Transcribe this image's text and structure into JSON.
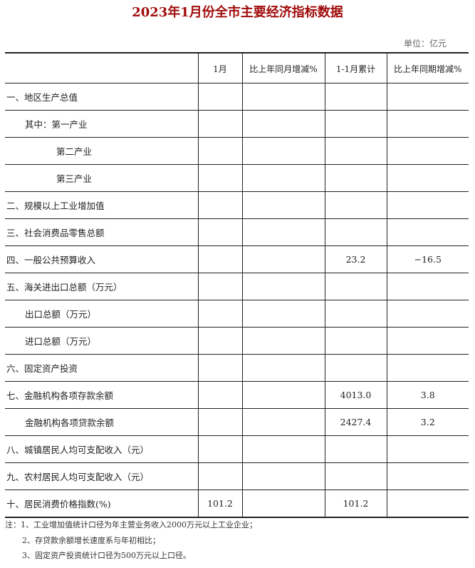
{
  "title": "2023年1月份全市主要经济指标数据",
  "unit": "单位：亿元",
  "columns": [
    "",
    "1月",
    "比上年同月增减%",
    "1-1月累计",
    "比上年同期增减%"
  ],
  "rows": [
    {
      "label": "一、地区生产总值",
      "indent": 0,
      "values": [
        "",
        "",
        "",
        ""
      ]
    },
    {
      "label": "其中：第一产业",
      "indent": 1,
      "values": [
        "",
        "",
        "",
        ""
      ]
    },
    {
      "label": "第二产业",
      "indent": 2,
      "values": [
        "",
        "",
        "",
        ""
      ]
    },
    {
      "label": "第三产业",
      "indent": 2,
      "values": [
        "",
        "",
        "",
        ""
      ]
    },
    {
      "label": "二、规模以上工业增加值",
      "indent": 0,
      "values": [
        "",
        "",
        "",
        ""
      ]
    },
    {
      "label": "三、社会消费品零售总额",
      "indent": 0,
      "values": [
        "",
        "",
        "",
        ""
      ]
    },
    {
      "label": "四、一般公共预算收入",
      "indent": 0,
      "values": [
        "",
        "",
        "23.2",
        "−16.5"
      ]
    },
    {
      "label": "五、海关进出口总额（万元）",
      "indent": 0,
      "values": [
        "",
        "",
        "",
        ""
      ]
    },
    {
      "label": "出口总额（万元）",
      "indent": 1,
      "values": [
        "",
        "",
        "",
        ""
      ]
    },
    {
      "label": "进口总额（万元）",
      "indent": 1,
      "values": [
        "",
        "",
        "",
        ""
      ]
    },
    {
      "label": "六、固定资产投资",
      "indent": 0,
      "values": [
        "",
        "",
        "",
        ""
      ]
    },
    {
      "label": "七、金融机构各项存款余额",
      "indent": 0,
      "values": [
        "",
        "",
        "4013.0",
        "3.8"
      ]
    },
    {
      "label": "金融机构各项贷款余额",
      "indent": 1,
      "values": [
        "",
        "",
        "2427.4",
        "3.2"
      ]
    },
    {
      "label": "八、城镇居民人均可支配收入（元）",
      "indent": 0,
      "values": [
        "",
        "",
        "",
        ""
      ]
    },
    {
      "label": "九、农村居民人均可支配收入（元）",
      "indent": 0,
      "values": [
        "",
        "",
        "",
        ""
      ]
    },
    {
      "label": "十、居民消费价格指数(%)",
      "indent": 0,
      "values": [
        "101.2",
        "",
        "101.2",
        ""
      ]
    }
  ],
  "notes": [
    "注：1、工业增加值统计口径为年主营业务收入2000万元以上工业企业；",
    "2、存贷款余额增长速度系与年初相比；",
    "3、固定资产投资统计口径为500万元以上口径。"
  ],
  "colors": {
    "title": "#a00c0c"
  }
}
